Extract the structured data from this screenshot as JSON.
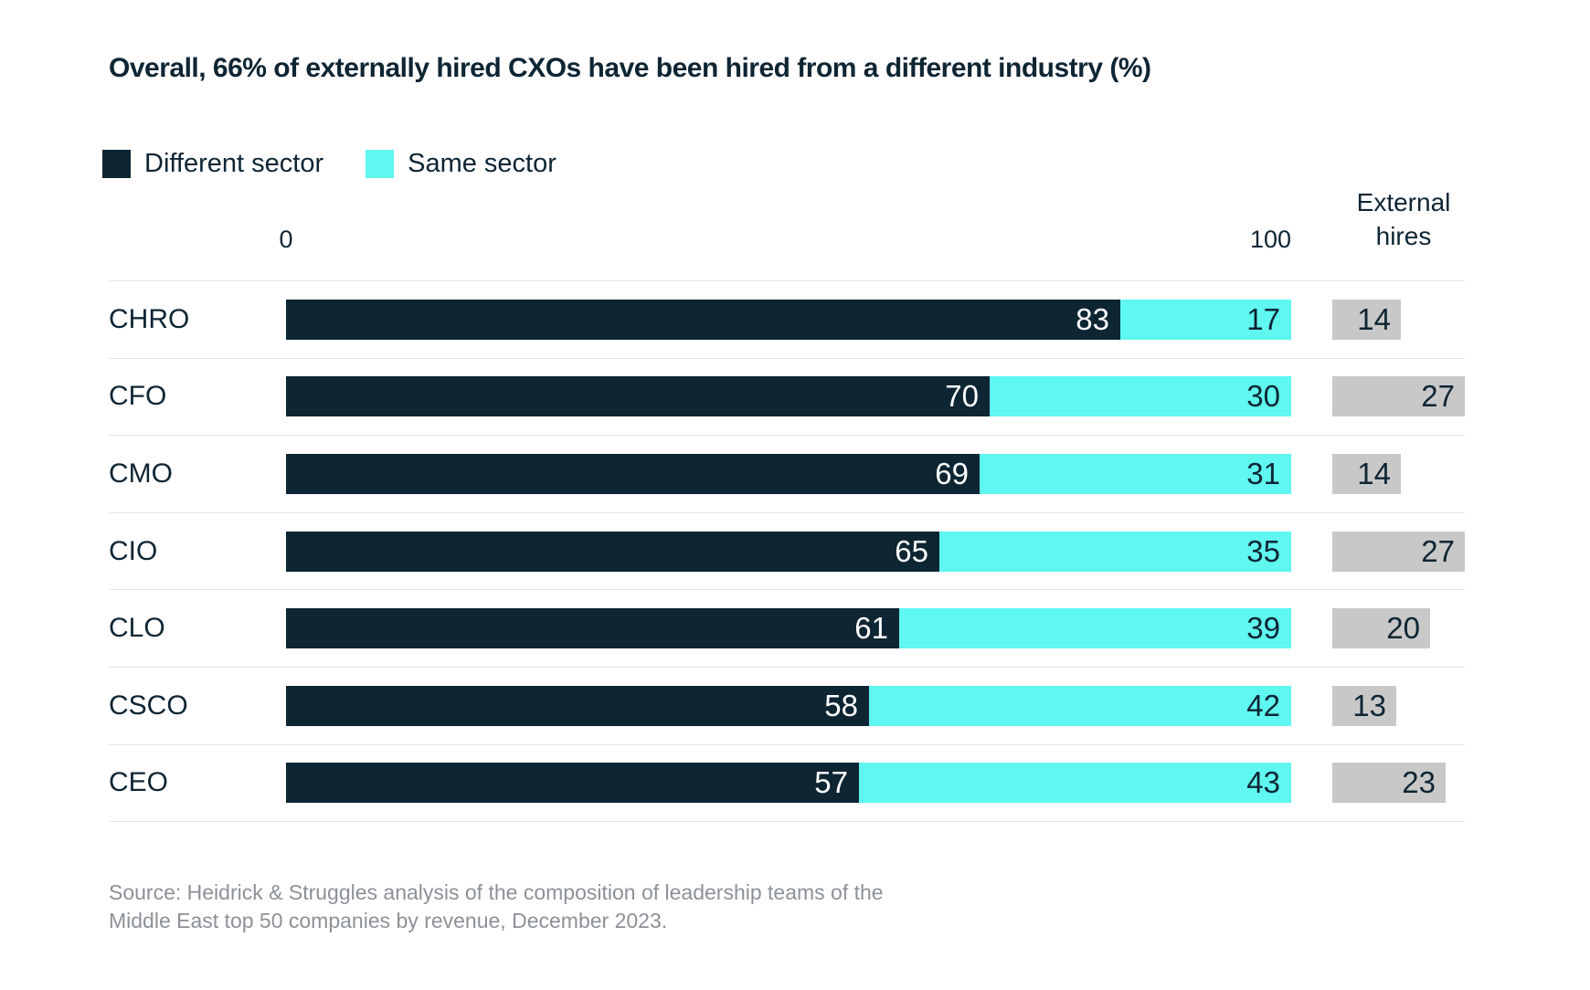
{
  "title": "Overall, 66% of externally hired CXOs have been hired from a different industry (%)",
  "legend": {
    "items": [
      {
        "label": "Different sector",
        "color": "#0E2534"
      },
      {
        "label": "Same sector",
        "color": "#5FF7F0"
      }
    ]
  },
  "axis": {
    "min": "0",
    "max": "100"
  },
  "external_header": {
    "line1": "External",
    "line2": "hires"
  },
  "chart_data": {
    "type": "bar",
    "orientation": "horizontal",
    "stacked": true,
    "title": "Overall, 66% of externally hired CXOs have been hired from a different industry (%)",
    "categories": [
      "CHRO",
      "CFO",
      "CMO",
      "CIO",
      "CLO",
      "CSCO",
      "CEO"
    ],
    "series": [
      {
        "name": "Different sector",
        "color": "#0E2534",
        "values": [
          83,
          70,
          69,
          65,
          61,
          58,
          57
        ]
      },
      {
        "name": "Same sector",
        "color": "#5FF7F0",
        "values": [
          17,
          30,
          31,
          35,
          39,
          42,
          43
        ]
      }
    ],
    "external_hires": {
      "header": "External hires",
      "color": "#C8C8C8",
      "values": [
        14,
        27,
        14,
        27,
        20,
        13,
        23
      ]
    },
    "xlim": [
      0,
      100
    ],
    "x_ticks": [
      0,
      100
    ],
    "grid": false,
    "legend_position": "top-left"
  },
  "source": {
    "lines": [
      "Source: Heidrick & Struggles analysis of the composition of leadership teams of the",
      "Middle East top 50 companies by revenue, December 2023."
    ]
  },
  "colors": {
    "navy": "#0E2534",
    "cyan": "#5FF7F0",
    "gray_box": "#C8C8C8",
    "separator": "#E4E4E4",
    "source_text": "#8C9197"
  }
}
